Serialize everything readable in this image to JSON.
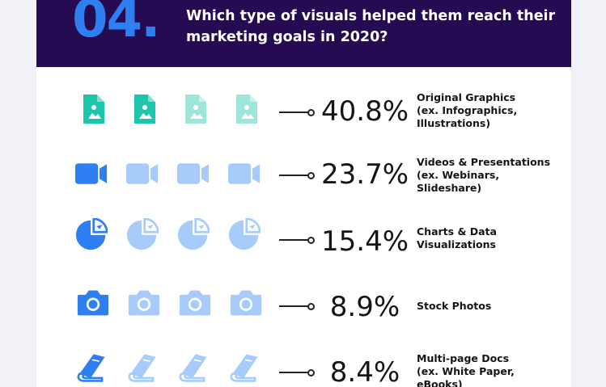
{
  "header": {
    "number": "04.",
    "question_line1": "Which type of visuals helped them reach their",
    "question_line2": "marketing goals in 2020?"
  },
  "colors": {
    "header_bg": "#250b52",
    "number": "#2f7ff1",
    "graphics_dark": "#1ec5ad",
    "graphics_light": "#9ee6da",
    "blue_dark": "#2d7ff2",
    "blue_light": "#a7ccfb"
  },
  "rows": [
    {
      "icon": "document-image-icon",
      "percent": "40.8%",
      "lines": [
        "Original Graphics",
        "(ex. Infographics,",
        "Illustrations)"
      ]
    },
    {
      "icon": "video-camera-icon",
      "percent": "23.7%",
      "lines": [
        "Videos & Presentations",
        "(ex. Webinars,",
        "Slideshare)"
      ]
    },
    {
      "icon": "pie-chart-icon",
      "percent": "15.4%",
      "lines": [
        "Charts & Data",
        "Visualizations"
      ]
    },
    {
      "icon": "camera-icon",
      "percent": "8.9%",
      "lines": [
        "Stock Photos"
      ]
    },
    {
      "icon": "book-icon",
      "percent": "8.4%",
      "lines": [
        "Multi-page Docs",
        "(ex. White Paper,",
        "eBooks)"
      ]
    }
  ]
}
